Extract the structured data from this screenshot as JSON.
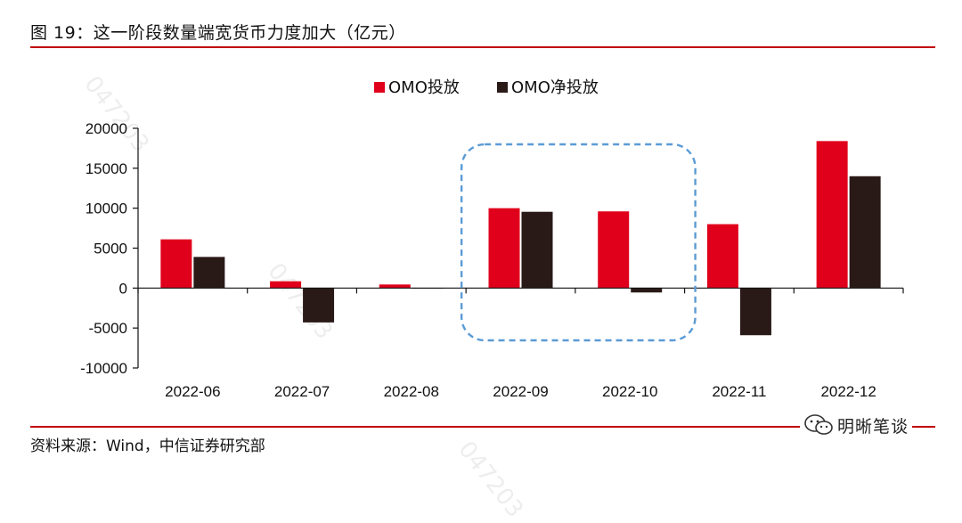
{
  "figure_title": "图 19：这一阶段数量端宽货币力度加大（亿元）",
  "source_note": "资料来源：Wind，中信证券研究部",
  "brand": {
    "label": "明晰笔谈",
    "icon": "wechat-icon"
  },
  "watermark": "047203",
  "colors": {
    "series_red": "#e0001b",
    "series_dark": "#2a1a17",
    "rule": "#c00000",
    "highlight": "#5b9bd5"
  },
  "chart_data": {
    "type": "bar",
    "title": "",
    "xlabel": "",
    "ylabel": "",
    "categories": [
      "2022-06",
      "2022-07",
      "2022-08",
      "2022-09",
      "2022-10",
      "2022-11",
      "2022-12"
    ],
    "series": [
      {
        "name": "OMO投放",
        "values": [
          6100,
          850,
          450,
          10000,
          9600,
          8000,
          18400
        ]
      },
      {
        "name": "OMO净投放",
        "values": [
          3900,
          -4300,
          0,
          9550,
          -550,
          -5900,
          14000
        ]
      }
    ],
    "ylim": [
      -10000,
      20000
    ],
    "yticks": [
      20000,
      15000,
      10000,
      5000,
      0,
      -5000,
      -10000
    ],
    "grid": false,
    "legend_position": "top-center",
    "highlight": {
      "from_category": "2022-09",
      "to_category": "2022-10",
      "style": "dashed-rounded-box"
    }
  }
}
